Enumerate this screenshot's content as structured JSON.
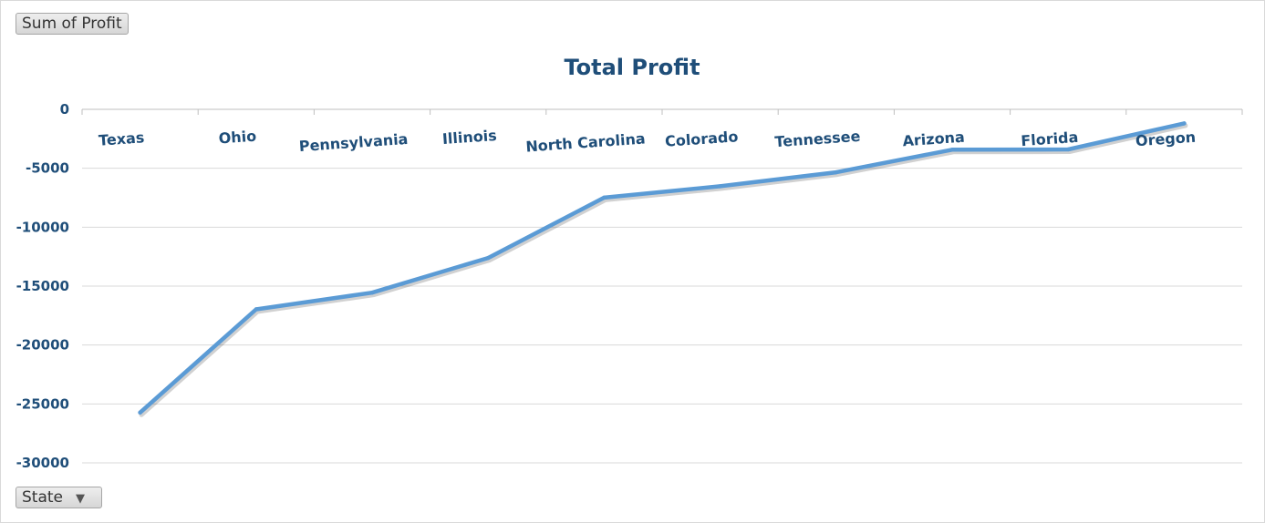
{
  "pivot": {
    "value_field_label": "Sum of Profit",
    "axis_field_label": "State",
    "axis_field_icon": "filter-icon"
  },
  "chart_data": {
    "type": "line",
    "title": "Total Profit",
    "xlabel": "",
    "ylabel": "",
    "categories": [
      "Texas",
      "Ohio",
      "Pennsylvania",
      "Illinois",
      "North Carolina",
      "Colorado",
      "Tennessee",
      "Arizona",
      "Florida",
      "Oregon"
    ],
    "series": [
      {
        "name": "",
        "values": [
          -25729,
          -16971,
          -15560,
          -12608,
          -7491,
          -6528,
          -5342,
          -3428,
          -3399,
          -1191
        ],
        "color": "#5b9bd5"
      }
    ],
    "ylim": [
      -30000,
      0
    ],
    "yticks": [
      0,
      -5000,
      -10000,
      -15000,
      -20000,
      -25000,
      -30000
    ],
    "grid": true,
    "legend": "none",
    "x_axis_position": "top",
    "colors": {
      "line": "#5b9bd5",
      "text": "#1f4e79",
      "grid": "#d9d9d9"
    }
  }
}
